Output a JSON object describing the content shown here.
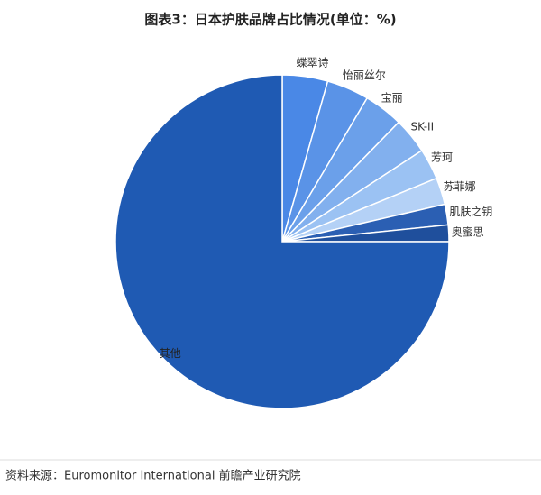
{
  "chart_data": {
    "type": "pie",
    "title": "图表3：日本护肤品牌占比情况(单位：%)",
    "categories": [
      "蝶翠诗",
      "怡丽丝尔",
      "宝丽",
      "SK-II",
      "芳珂",
      "苏菲娜",
      "肌肤之钥",
      "奥蜜思",
      "其他"
    ],
    "values": [
      4.4,
      4.1,
      3.8,
      3.5,
      3.0,
      2.6,
      2.0,
      1.6,
      75.0
    ],
    "colors": [
      "#4a88e6",
      "#5a93e7",
      "#6ba0ea",
      "#82b0ee",
      "#9bc2f3",
      "#b4d1f6",
      "#2b5fb3",
      "#1f4f9c",
      "#1f5ab3"
    ],
    "source": "资料来源：Euromonitor International 前瞻产业研究院"
  }
}
